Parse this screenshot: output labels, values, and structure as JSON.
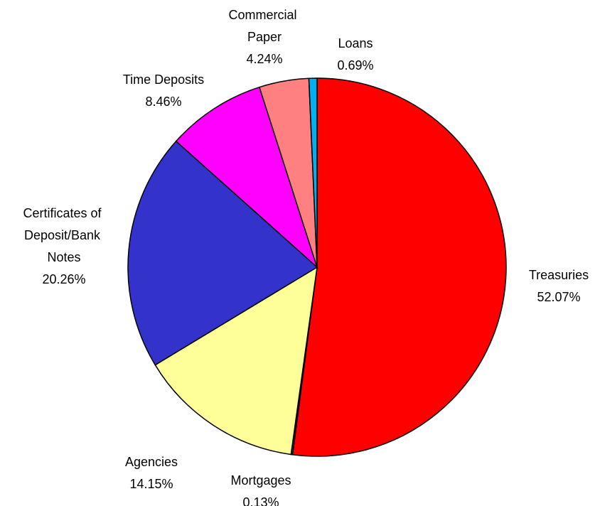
{
  "chart_data": {
    "type": "pie",
    "categories": [
      "Treasuries",
      "Mortgages",
      "Agencies",
      "Certificates of Deposit/Bank Notes",
      "Time Deposits",
      "Commercial Paper",
      "Loans"
    ],
    "values": [
      52.07,
      0.13,
      14.15,
      20.26,
      8.46,
      4.24,
      0.69
    ],
    "value_labels": [
      "52.07%",
      "0.13%",
      "14.15%",
      "20.26%",
      "8.46%",
      "4.24%",
      "0.69%"
    ],
    "colors": [
      "#ff0000",
      "#404040",
      "#ffff99",
      "#3333cc",
      "#ff00ff",
      "#ff8080",
      "#00b0f0"
    ]
  }
}
